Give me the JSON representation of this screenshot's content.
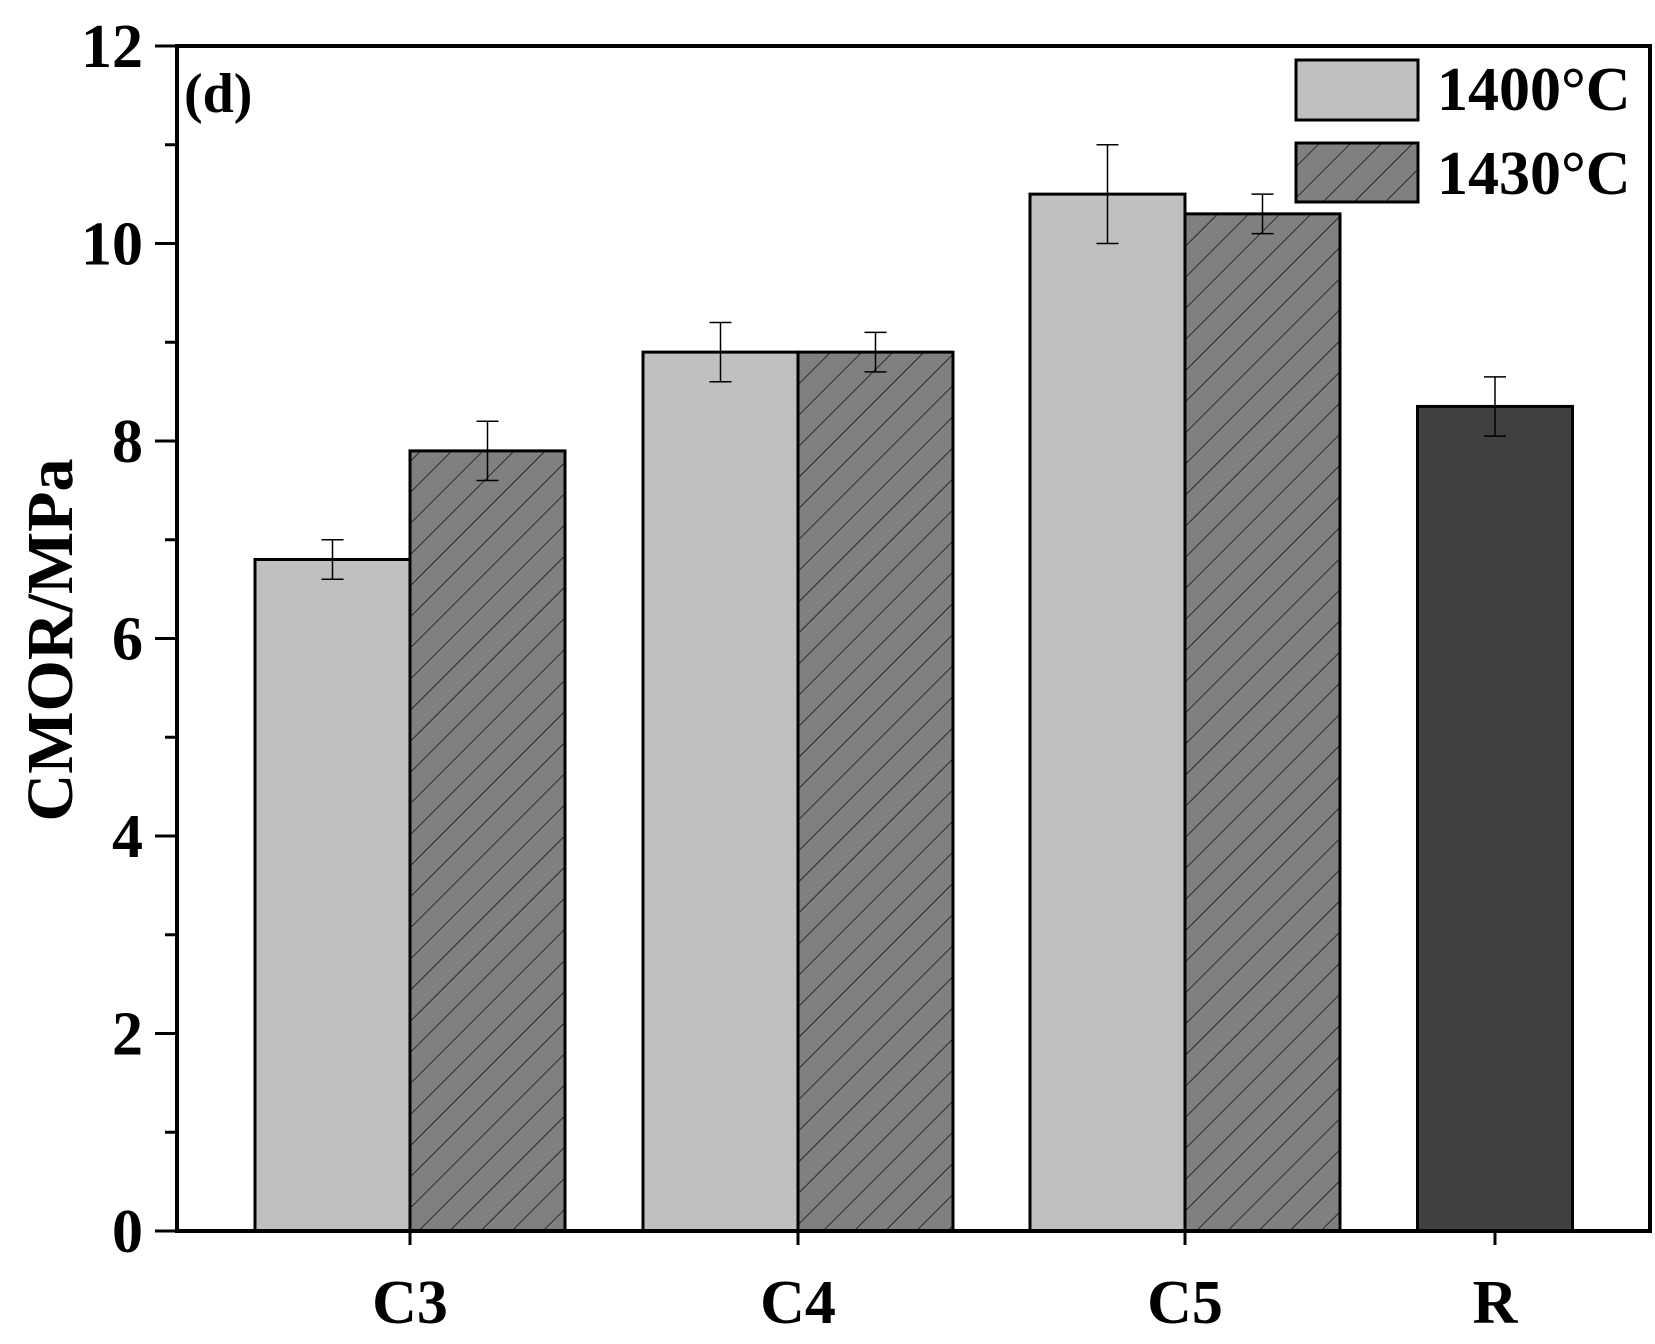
{
  "chart_data": {
    "type": "bar",
    "panel_label": "(d)",
    "ylabel": "CMOR/MPa",
    "xlabel": "",
    "ylim": [
      0,
      12
    ],
    "yticks": [
      "0",
      "2",
      "4",
      "6",
      "8",
      "10",
      "12"
    ],
    "categories": [
      "C3",
      "C4",
      "C5",
      "R"
    ],
    "legend_position": "top-right",
    "grid": false,
    "series": [
      {
        "name": "1400°C",
        "color": "#c0c0c0",
        "hatch": false,
        "values": [
          6.8,
          8.9,
          10.5,
          null
        ],
        "errors": [
          0.2,
          0.3,
          0.5,
          null
        ]
      },
      {
        "name": "1430°C",
        "color": "#808080",
        "hatch": true,
        "values": [
          7.9,
          8.9,
          10.3,
          null
        ],
        "errors": [
          0.3,
          0.2,
          0.2,
          null
        ]
      }
    ],
    "reference": {
      "category": "R",
      "value": 8.35,
      "error": 0.3,
      "color": "#404040"
    }
  }
}
